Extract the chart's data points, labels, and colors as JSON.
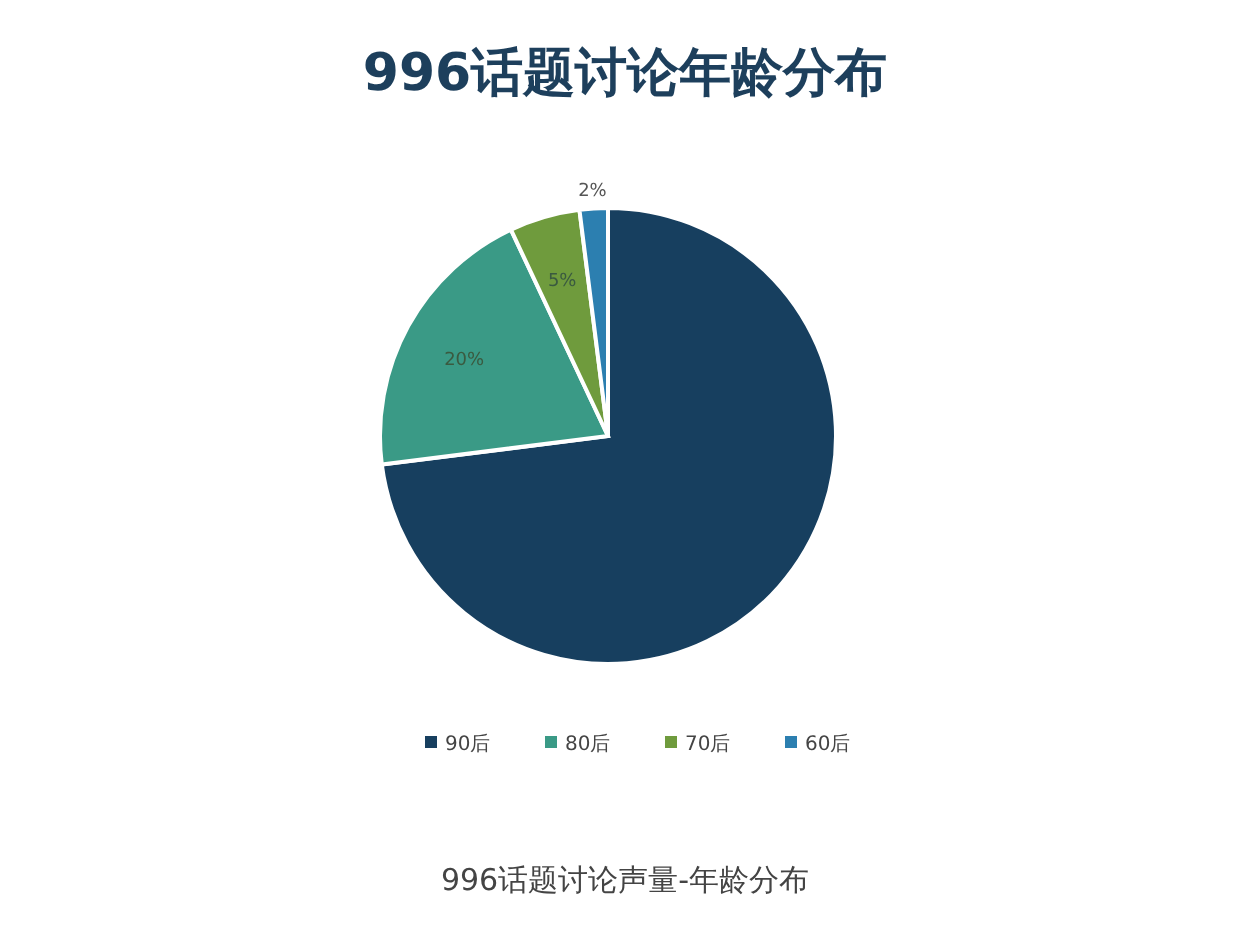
{
  "chart_data": {
    "type": "pie",
    "title": "996话题讨论年龄分布",
    "categories": [
      "90后",
      "80后",
      "70后",
      "60后"
    ],
    "values": [
      73,
      20,
      5,
      2
    ],
    "colors": [
      "#173f5f",
      "#3a9a86",
      "#6f9b3d",
      "#2c7fb0"
    ],
    "value_labels": [
      null,
      "20%",
      "5%",
      "2%"
    ],
    "legend": "bottom",
    "annotations": [
      "996话题讨论声量-年龄分布"
    ]
  }
}
